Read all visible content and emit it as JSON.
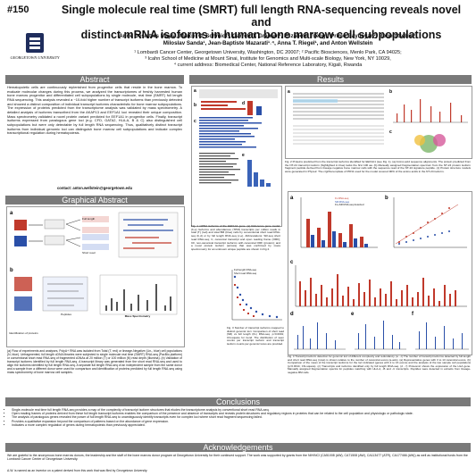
{
  "poster": {
    "number": "#150",
    "title_line1": "Single molecule real time (SMRT) full length RNA-sequencing reveals novel and",
    "title_line2": "distinct mRNA isoforms in human bone marrow cell subpopulations",
    "authors_line1": "Anne Deslattes Mays¹, Marcel O. Schmidt¹, Garrett T. Graham¹, Elizabeth Tseng², Primo Baybayan², Robert Sebra³,",
    "authors_line2": "Miloslav Sanda¹, Jean-Baptiste Mazarati¹˒⁴, Anna T. Riegel¹, and Anton Wellstein",
    "affil_line1": "¹ Lombardi Cancer Center, Georgetown University, Washington, DC 20007; ² Pacific Biosciences, Menlo Park, CA 94025;",
    "affil_line2": "³ Icahn School of Medicine at Mount Sinai, Institute for Genomics and Multi-scale Biology, New York, NY 10029,",
    "affil_line3": "⁴ current address: Biomedical Center, National Reference Laboratory, Kigali, Rwanda",
    "logo_text": "GEORGETOWN UNIVERSITY"
  },
  "sections": {
    "abstract": "Abstract",
    "graphical_abstract": "Graphical Abstract",
    "results": "Results",
    "conclusions": "Conclusions",
    "acknowledgements": "Acknowledgements"
  },
  "abstract_text": "Hematopoietic cells are continuously replenished from progenitor cells that reside in the bone marrow. To evaluate molecular changes during this process, we analyzed the transcriptomes of freshly harvested human bone marrow progenitor and differentiated cell subpopulations by single molecule, real time (SMRT) full length RNA sequencing. This analysis revealed a ~10-fold higher number of transcript isoforms than previously detected and showed a distinct composition of individual transcript isoforms characteristic for bone marrow subpopulations. The expression of proteins predicted from the transcriptome analysis was validated by mass spectrometry. A detailed analysis of isoforms transcribed from the AKAP13 and EEF1A1 loci revealed their unique composition. Mass spectrometry validated a novel protein variant predicted for EEF1A1 in progenitor cells. Finally, transcript isoforms expressed from paralogous gene loci (e.g. CFD, GATA2, HLA-A, B & C) also distinguished cell subpopulations but were only detectable by full length RNA sequencing. Thus, qualitatively distinct transcript isoforms from individual genomic loci can distinguish bone marrow cell subpopulations and indicate complex transcriptional regulation during hematopoiesis.",
  "contact": "contact: anton.wellstein@georgetown.edu",
  "ga_caption": "(a) Flow of experiments and analyses. PolyA+ RNA was isolated from Total (T, red) or lineage-Negative (Lin-, blue) cell populations (N, blue). Unfragmented, full length cDNA libraries were subjected to single molecule real time (SMRT) RNA-seq (PacBio platform) or conventional short read RNA-seq of fragmented cDNAs at 20 million (T) or 100 million (N) read depth (Illumina). (b) Validation of transcript isoforms identified by full length RNA-seq. A transcript library was generated from the short read RNA-seq and used to align the isoforms identified by full length RNA-seq. A separate full length RNA-seq of an independent sample from the same donor and a sample from a different donor were used for comparison and identification of proteins predicted by full length RNA-seq using mass spectrometry of bone marrow cell samples.",
  "fig1_caption": "Fig. 1 mRNA isoforms of the EEF1A1 gene. (a) Reference gene model; (b-e) Isoforms and abundances (TPM) transcripts per million reads in total (T) (red) and total BM (blue) cells by conventional short read RNA-seq (b,d) or by full length RNA-seq (c,e). Abbreviations: SR-seq short read RNA-seq; C, canonical transcript and open reading frame (ORF); CF, non-canonical transcript isoforms with canonical ORF (protein); and a novel protein isoform (arrows) that was confirmed by mass spectrometry for an unknown unique peptide are shown in Fig 2.",
  "fig2_caption": "Fig. 2 Proteins predicted from the transcript isoforms identified for EEF1A1 (see Fig. 1). (a) Amino acid sequence alignments. The protein predicted from the NT-24 transcript isoform (highlighted in blue) lacks the first 100 aa. (b) Manually assigned fragmentation spectrum from the NT-24 protein isoform fragment peptide derived from lineage negative bone marrow cells with the sequence read of the NT-24 signature peptide. (c) Protein structure models were generated in Phyre2. The c/g/3/a template of PFN1 used for the model covered 90% of the amino acids in the NT-24 isoform.",
  "fig3_caption": "Fig. 3 Number of transcript isoforms mapped to distinct genomic loci. Comparison of short read (SR) vs full length (FL) RNA-seq. p<0.0001; Chi-square for trend. The distribution of seen counts per transcript isoform and transcript isoform counts per genomic locus are provided.",
  "fig4_caption": "Fig. 4 Transcript isoform detection for genomic loci of different complexity and redundancy. (a - c) The number of transcript isoforms detected by full length and short read RNA-seq (rows) is shown relative to the number of canonical exons (a-axis). (a) Representative genes with 3 to 13 canonical exons. (b) Comparison of the mean of the transcript isoforms for the loci indicated (genes with 2 to 16 exons) and the analysis of the two sample cell populations (p<0.0014; Chi-square). (c) Transcripts and isoforms identified only by full length RNA-seq. (d - f) Proteomic shows the expression of the HLA gene. Manually assigned fragmentation spectra for peptides matching with HLA-A, -B and -C transcripts. Peptides were detected in extracts from lineage-negative BM cells.",
  "conclusions": [
    "Single-molecule real time full length RNA-seq provides a map of the complexity of transcript isoform structures that eludes the transcriptome analysis by conventional short read RNA-seq.",
    "Open reading frames of proteins derived from these full length transcript isoforms enables the comparison of the presence and absence of transcripts and reveals protein structures and regulatory regions in proteins that can be related to the cell population and physiologic or pathologic state.",
    "The analysis of paralogous genes revealed the power of full length RNA-seq to unambiguously identify transcripts even for complex loci where short read fragment sequencing failed.",
    "Provides a qualitative expansion beyond the comparison of patterns based on the abundance of gene expression.",
    "Indicates a more complex regulation of genes during hematopoiesis than previously appreciated."
  ],
  "acknowledgements": "We are grateful to the anonymous bone marrow donors, the leadership and the staff of the bone marrow donor program at Georgetown University for their continued support. The work was supported by grants from the NIH/NCI (CA51008 (AW), CA71508 (AW), CA113477 (ATR), CA177466 (AW)) as well as institutional funds from the Lombardi Cancer Center of Georgetown University.",
  "patent_note": "A.W. is named as an inventor on a patent derived from this work that was filed by Georgetown University.",
  "panel_labels": [
    "a",
    "b",
    "c",
    "d",
    "e"
  ],
  "ga_labels": {
    "total_bm": "Total BM",
    "lin_neg": "Lin-",
    "polyA": "PolyA+ RNA",
    "cdna": "cDNA",
    "pacbio": "PacBio",
    "illumina": "Illumina",
    "full_length": "Full length",
    "short_read": "Short read",
    "flc": "FL cDNA",
    "srseq": "SR-seq",
    "mass_spec": "Mass Spectrometry",
    "peptides": "Peptides",
    "ident": "Identification of proteins"
  },
  "fig4_legend": [
    "FL RNA-seq",
    "SR RNA-seq",
    "FL+SR RNA-seq detected"
  ],
  "fig3_legend": [
    "Full length RNA-seq",
    "Short read RNA-seq"
  ],
  "colors": {
    "header_bar": "#7a7a7a",
    "accent_red": "#c0392b",
    "accent_blue": "#2a4fa8",
    "navy": "#1f2d5c"
  }
}
